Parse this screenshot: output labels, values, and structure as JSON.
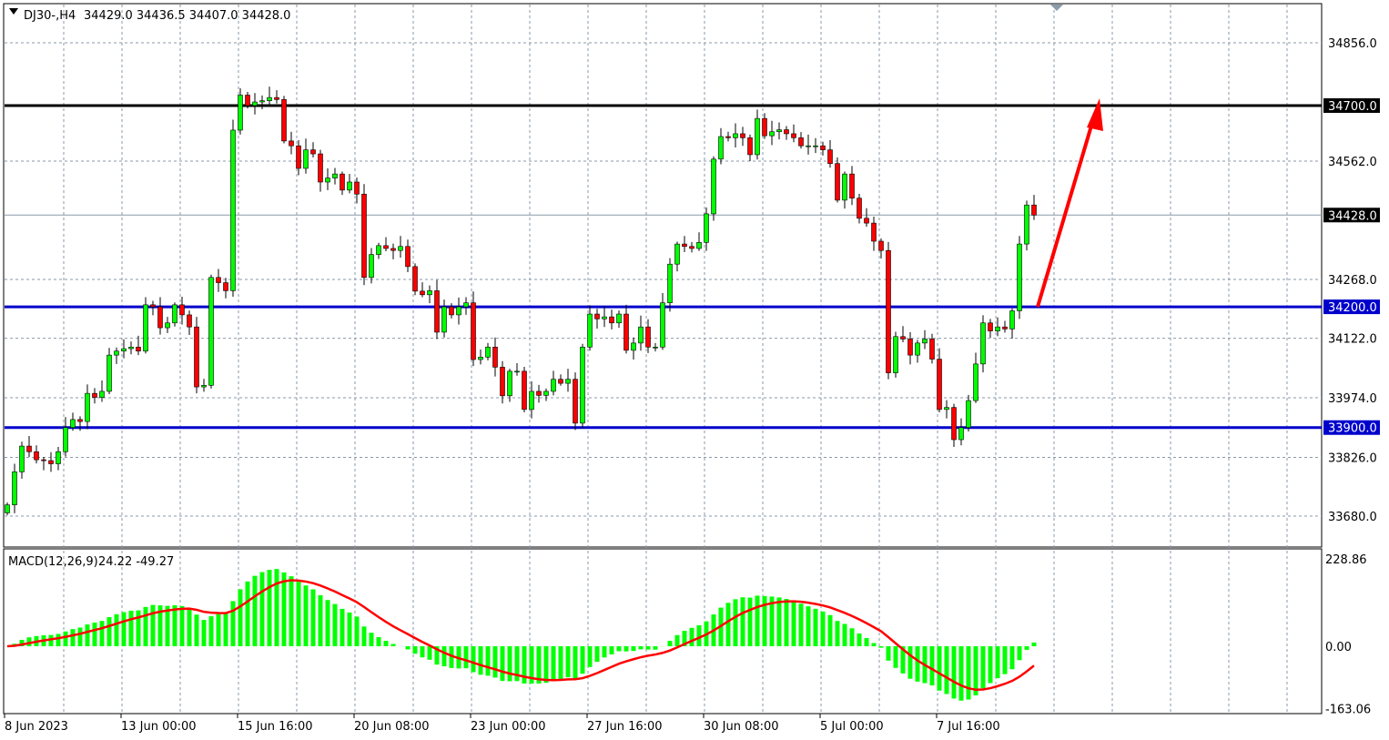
{
  "header": {
    "symbol": "DJ30-,H4",
    "ohlc": "34429.0 34436.5 34407.0 34428.0"
  },
  "macd_label": {
    "name": "MACD(12,26,9)",
    "values": "24.22 -49.27"
  },
  "colors": {
    "bull": "#00ff00",
    "bear": "#ff0000",
    "support": "#0000cc",
    "resistance": "#000000",
    "arrow": "#ff0000",
    "macd_hist": "#00ff00",
    "macd_signal": "#ff0000"
  },
  "chart_data": {
    "type": "candlestick",
    "price_ticks": [
      "34856.0",
      "34562.0",
      "34268.0",
      "34122.0",
      "33974.0",
      "33826.0",
      "33680.0"
    ],
    "price_tick_values": [
      34856,
      34562,
      34268,
      34122,
      33974,
      33826,
      33680
    ],
    "ylim": [
      33620,
      34950
    ],
    "time_labels": [
      "8 Jun 2023",
      "13 Jun 00:00",
      "15 Jun 16:00",
      "20 Jun 08:00",
      "23 Jun 00:00",
      "27 Jun 16:00",
      "30 Jun 08:00",
      "5 Jul 00:00",
      "7 Jul 16:00"
    ],
    "levels": [
      {
        "price": 34700,
        "label": "34700.0",
        "color": "#000000"
      },
      {
        "price": 34200,
        "label": "34200.0",
        "color": "#0000cc"
      },
      {
        "price": 33900,
        "label": "33900.0",
        "color": "#0000cc"
      }
    ],
    "current_price": {
      "price": 34428,
      "label": "34428.0"
    },
    "macd_ticks": [
      "228.86",
      "0.00",
      "-163.06"
    ],
    "macd_tick_values": [
      228.86,
      0,
      -163.06
    ],
    "closes": [
      33708,
      33790,
      33854,
      33840,
      33820,
      33818,
      33810,
      33840,
      33900,
      33920,
      33915,
      33985,
      33975,
      33990,
      34080,
      34090,
      34096,
      34100,
      34090,
      34205,
      34200,
      34148,
      34160,
      34205,
      34180,
      34150,
      34001,
      34005,
      34273,
      34260,
      34240,
      34639,
      34726,
      34700,
      34709,
      34712,
      34720,
      34715,
      34612,
      34600,
      34544,
      34590,
      34580,
      34510,
      34520,
      34530,
      34490,
      34510,
      34480,
      34273,
      34330,
      34352,
      34345,
      34340,
      34350,
      34300,
      34239,
      34230,
      34240,
      34137,
      34200,
      34180,
      34200,
      34210,
      34069,
      34075,
      34100,
      34050,
      33979,
      34040,
      34040,
      33945,
      33990,
      33980,
      33990,
      34020,
      34010,
      34020,
      33911,
      34100,
      34182,
      34170,
      34175,
      34160,
      34182,
      34092,
      34110,
      34150,
      34100,
      34100,
      34210,
      34306,
      34356,
      34350,
      34345,
      34360,
      34431,
      34567,
      34623,
      34620,
      34630,
      34620,
      34578,
      34668,
      34625,
      34635,
      34640,
      34630,
      34620,
      34600,
      34600,
      34600,
      34590,
      34556,
      34465,
      34530,
      34470,
      34420,
      34408,
      34363,
      34340,
      34036,
      34126,
      34120,
      34080,
      34110,
      34120,
      34070,
      33945,
      33950,
      33870,
      33900,
      33967,
      34058,
      34160,
      34140,
      34150,
      34145,
      34190,
      34356,
      34453,
      34428
    ],
    "annotation": "arrow-up from 34200 toward 34700"
  }
}
